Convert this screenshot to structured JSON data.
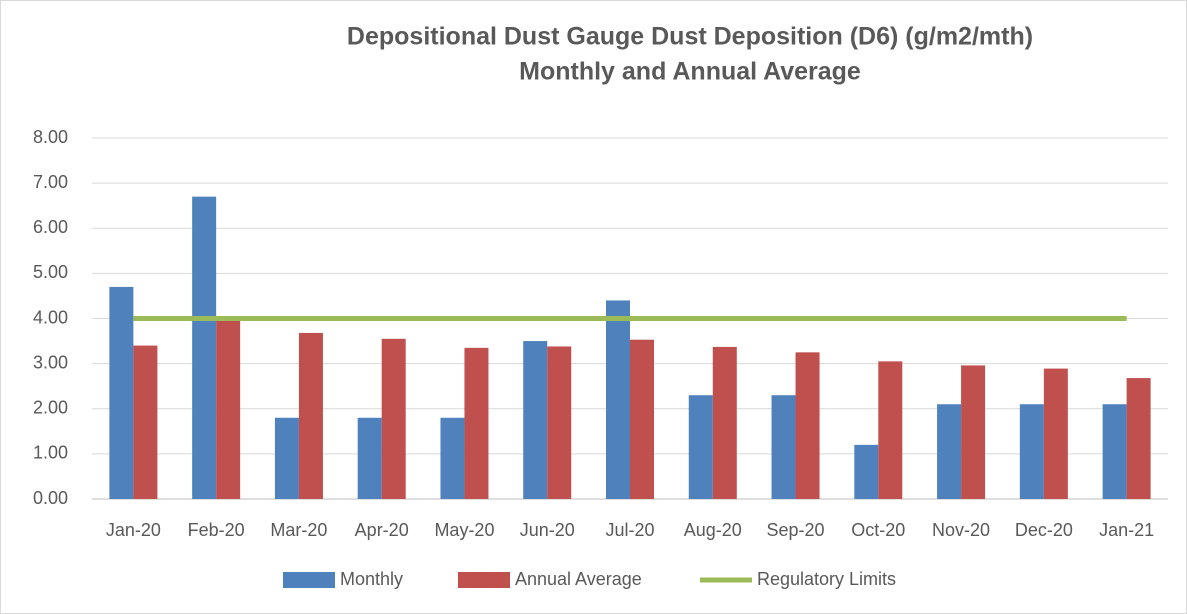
{
  "chart_data": {
    "type": "bar",
    "title": [
      "Depositional Dust Gauge Dust Deposition (D6) (g/m2/mth)",
      "Monthly and Annual Average"
    ],
    "categories": [
      "Jan-20",
      "Feb-20",
      "Mar-20",
      "Apr-20",
      "May-20",
      "Jun-20",
      "Jul-20",
      "Aug-20",
      "Sep-20",
      "Oct-20",
      "Nov-20",
      "Dec-20",
      "Jan-21"
    ],
    "series": [
      {
        "name": "Monthly",
        "type": "bar",
        "color": "#4f81bd",
        "values": [
          4.7,
          6.7,
          1.8,
          1.8,
          1.8,
          3.5,
          4.4,
          2.3,
          2.3,
          1.2,
          2.1,
          2.1,
          2.1
        ]
      },
      {
        "name": "Annual Average",
        "type": "bar",
        "color": "#c0504d",
        "values": [
          3.4,
          4.0,
          3.68,
          3.55,
          3.35,
          3.38,
          3.53,
          3.37,
          3.25,
          3.05,
          2.96,
          2.89,
          2.68
        ]
      },
      {
        "name": "Regulatory Limits",
        "type": "line",
        "color": "#9bbb59",
        "values": [
          4,
          4,
          4,
          4,
          4,
          4,
          4,
          4,
          4,
          4,
          4,
          4,
          4
        ]
      }
    ],
    "ylim": [
      0,
      8
    ],
    "yticks": [
      {
        "value": 0,
        "label": "0.00"
      },
      {
        "value": 1,
        "label": "1.00"
      },
      {
        "value": 2,
        "label": "2.00"
      },
      {
        "value": 3,
        "label": "3.00"
      },
      {
        "value": 4,
        "label": "4.00"
      },
      {
        "value": 5,
        "label": "5.00"
      },
      {
        "value": 6,
        "label": "6.00"
      },
      {
        "value": 7,
        "label": "7.00"
      },
      {
        "value": 8,
        "label": "8.00"
      }
    ],
    "grid": true,
    "legend": "bottom"
  }
}
